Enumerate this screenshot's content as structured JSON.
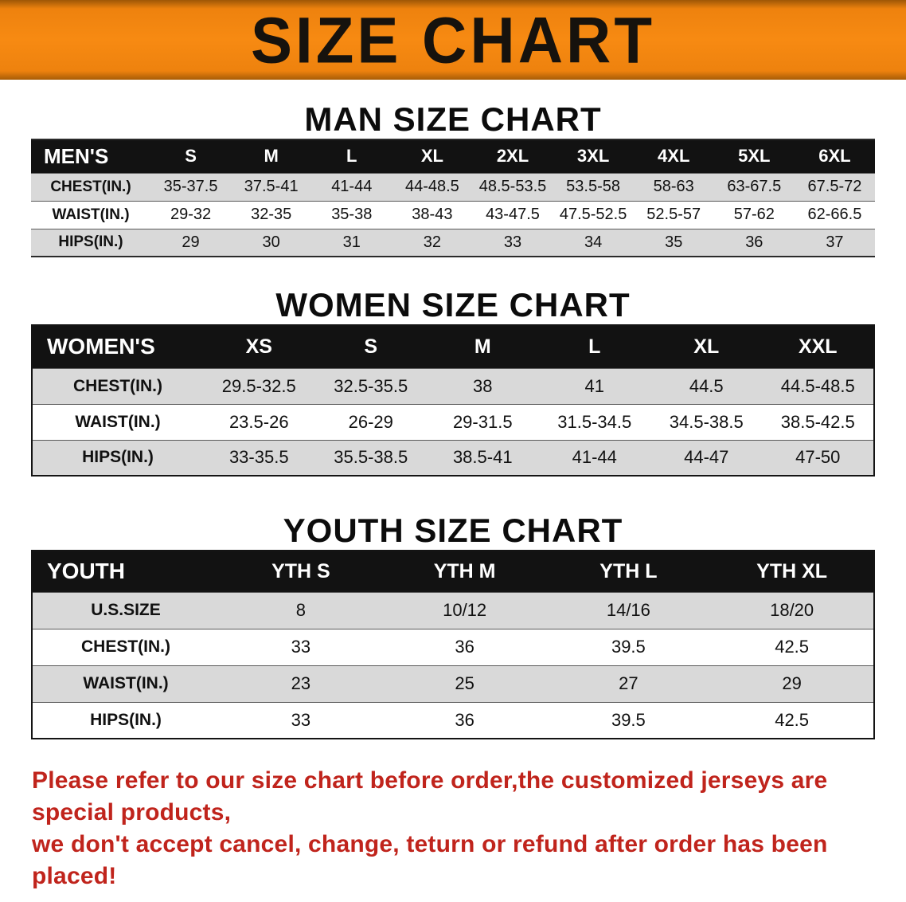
{
  "banner": {
    "title": "SIZE CHART",
    "bg_color": "#f5830f"
  },
  "men": {
    "heading": "MAN SIZE CHART",
    "table": {
      "header": [
        "MEN'S",
        "S",
        "M",
        "L",
        "XL",
        "2XL",
        "3XL",
        "4XL",
        "5XL",
        "6XL"
      ],
      "rows": [
        [
          "CHEST(IN.)",
          "35-37.5",
          "37.5-41",
          "41-44",
          "44-48.5",
          "48.5-53.5",
          "53.5-58",
          "58-63",
          "63-67.5",
          "67.5-72"
        ],
        [
          "WAIST(IN.)",
          "29-32",
          "32-35",
          "35-38",
          "38-43",
          "43-47.5",
          "47.5-52.5",
          "52.5-57",
          "57-62",
          "62-66.5"
        ],
        [
          "HIPS(IN.)",
          "29",
          "30",
          "31",
          "32",
          "33",
          "34",
          "35",
          "36",
          "37"
        ]
      ]
    }
  },
  "women": {
    "heading": "WOMEN SIZE CHART",
    "table": {
      "header": [
        "WOMEN'S",
        "XS",
        "S",
        "M",
        "L",
        "XL",
        "XXL"
      ],
      "rows": [
        [
          "CHEST(IN.)",
          "29.5-32.5",
          "32.5-35.5",
          "38",
          "41",
          "44.5",
          "44.5-48.5"
        ],
        [
          "WAIST(IN.)",
          "23.5-26",
          "26-29",
          "29-31.5",
          "31.5-34.5",
          "34.5-38.5",
          "38.5-42.5"
        ],
        [
          "HIPS(IN.)",
          "33-35.5",
          "35.5-38.5",
          "38.5-41",
          "41-44",
          "44-47",
          "47-50"
        ]
      ]
    }
  },
  "youth": {
    "heading": "YOUTH SIZE CHART",
    "table": {
      "header": [
        "YOUTH",
        "YTH S",
        "YTH M",
        "YTH L",
        "YTH XL"
      ],
      "rows": [
        [
          "U.S.SIZE",
          "8",
          "10/12",
          "14/16",
          "18/20"
        ],
        [
          "CHEST(IN.)",
          "33",
          "36",
          "39.5",
          "42.5"
        ],
        [
          "WAIST(IN.)",
          "23",
          "25",
          "27",
          "29"
        ],
        [
          "HIPS(IN.)",
          "33",
          "36",
          "39.5",
          "42.5"
        ]
      ]
    }
  },
  "footer": {
    "line1": "Please refer to our size chart before order,the customized jerseys are special products,",
    "line2": "we don't accept cancel, change, teturn or refund after order has been placed!"
  }
}
